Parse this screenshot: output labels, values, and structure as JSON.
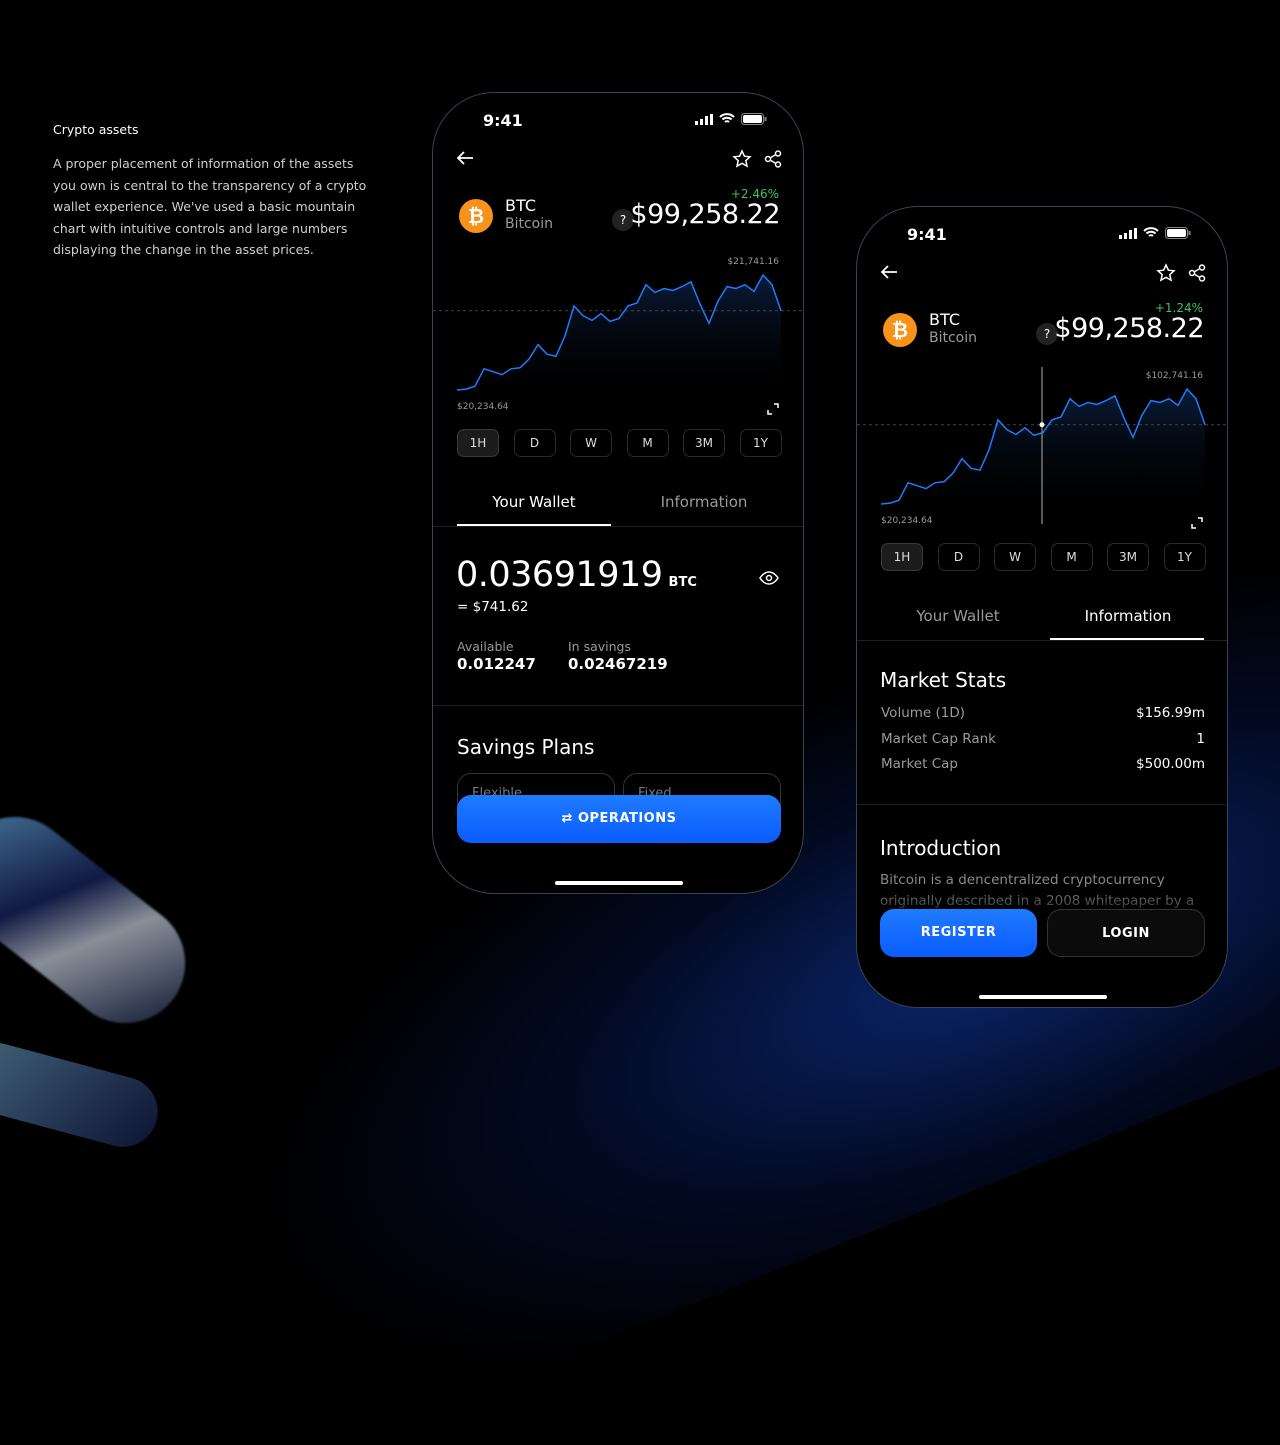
{
  "intro": {
    "title": "Crypto assets",
    "text": "A proper placement of information of the assets you own is central to the transparency of a crypto wallet experience. We've used a basic mountain chart with intuitive controls and large numbers displaying the change in the asset prices."
  },
  "colors": {
    "accent": "#0a6cff",
    "positive": "#3fbf6f",
    "coin": "#f7931a",
    "line": "#1f7bff"
  },
  "timeframes": [
    "1H",
    "D",
    "W",
    "M",
    "3M",
    "1Y"
  ],
  "phone1": {
    "time": "9:41",
    "symbol": "BTC",
    "name": "Bitcoin",
    "change": "+2.46%",
    "help": "?",
    "price": "$99,258.22",
    "tabs": [
      "Your Wallet",
      "Information"
    ],
    "active_tab": "Your Wallet",
    "active_timeframe": "1H",
    "balance": "0.03691919",
    "balance_unit": "BTC",
    "balance_usd": "= $741.62",
    "available_label": "Available",
    "available": "0.012247",
    "savings_label": "In savings",
    "savings": "0.02467219",
    "savings_title": "Savings Plans",
    "plans": [
      "Flexible",
      "Fixed"
    ],
    "operations": "OPERATIONS"
  },
  "phone2": {
    "time": "9:41",
    "symbol": "BTC",
    "name": "Bitcoin",
    "change": "+1.24%",
    "help": "?",
    "price": "$99,258.22",
    "tabs": [
      "Your Wallet",
      "Information"
    ],
    "active_tab": "Information",
    "active_timeframe": "1H",
    "stats_title": "Market Stats",
    "stats": [
      {
        "label": "Volume (1D)",
        "value": "$156.99m"
      },
      {
        "label": "Market Cap Rank",
        "value": "1"
      },
      {
        "label": "Market Cap",
        "value": "$500.00m"
      }
    ],
    "intro_title": "Introduction",
    "intro_text": "Bitcoin is a dencentralized cryptocurrency originally described in a 2008 whitepaper by a",
    "register": "REGISTER",
    "login": "LOGIN"
  },
  "chart_data": [
    {
      "type": "area",
      "max_label": "$21,741.16",
      "min_label": "$20,234.64",
      "ylim": [
        20234.64,
        21741.16
      ],
      "reference_line": "dashed",
      "values": [
        20235,
        20247,
        20285,
        20513,
        20475,
        20437,
        20513,
        20526,
        20640,
        20830,
        20703,
        20678,
        20944,
        21336,
        21209,
        21146,
        21235,
        21133,
        21171,
        21336,
        21374,
        21614,
        21513,
        21564,
        21538,
        21589,
        21652,
        21361,
        21108,
        21399,
        21589,
        21564,
        21614,
        21526,
        21741,
        21614,
        21273
      ]
    },
    {
      "type": "area",
      "max_label": "$102,741.16",
      "min_label": "$20,234.64",
      "ylim": [
        20234.64,
        102741.16
      ],
      "reference_line": "dashed",
      "crosshair": true,
      "values": [
        20235,
        20892,
        22974,
        35461,
        33380,
        31299,
        35461,
        36173,
        42417,
        52823,
        45868,
        44498,
        59067,
        80537,
        73581,
        70131,
        75005,
        69418,
        71500,
        80537,
        82618,
        95763,
        90231,
        93024,
        91600,
        94394,
        97844,
        81906,
        68049,
        83987,
        94394,
        93024,
        95763,
        90943,
        102719,
        95763,
        77086
      ]
    }
  ]
}
